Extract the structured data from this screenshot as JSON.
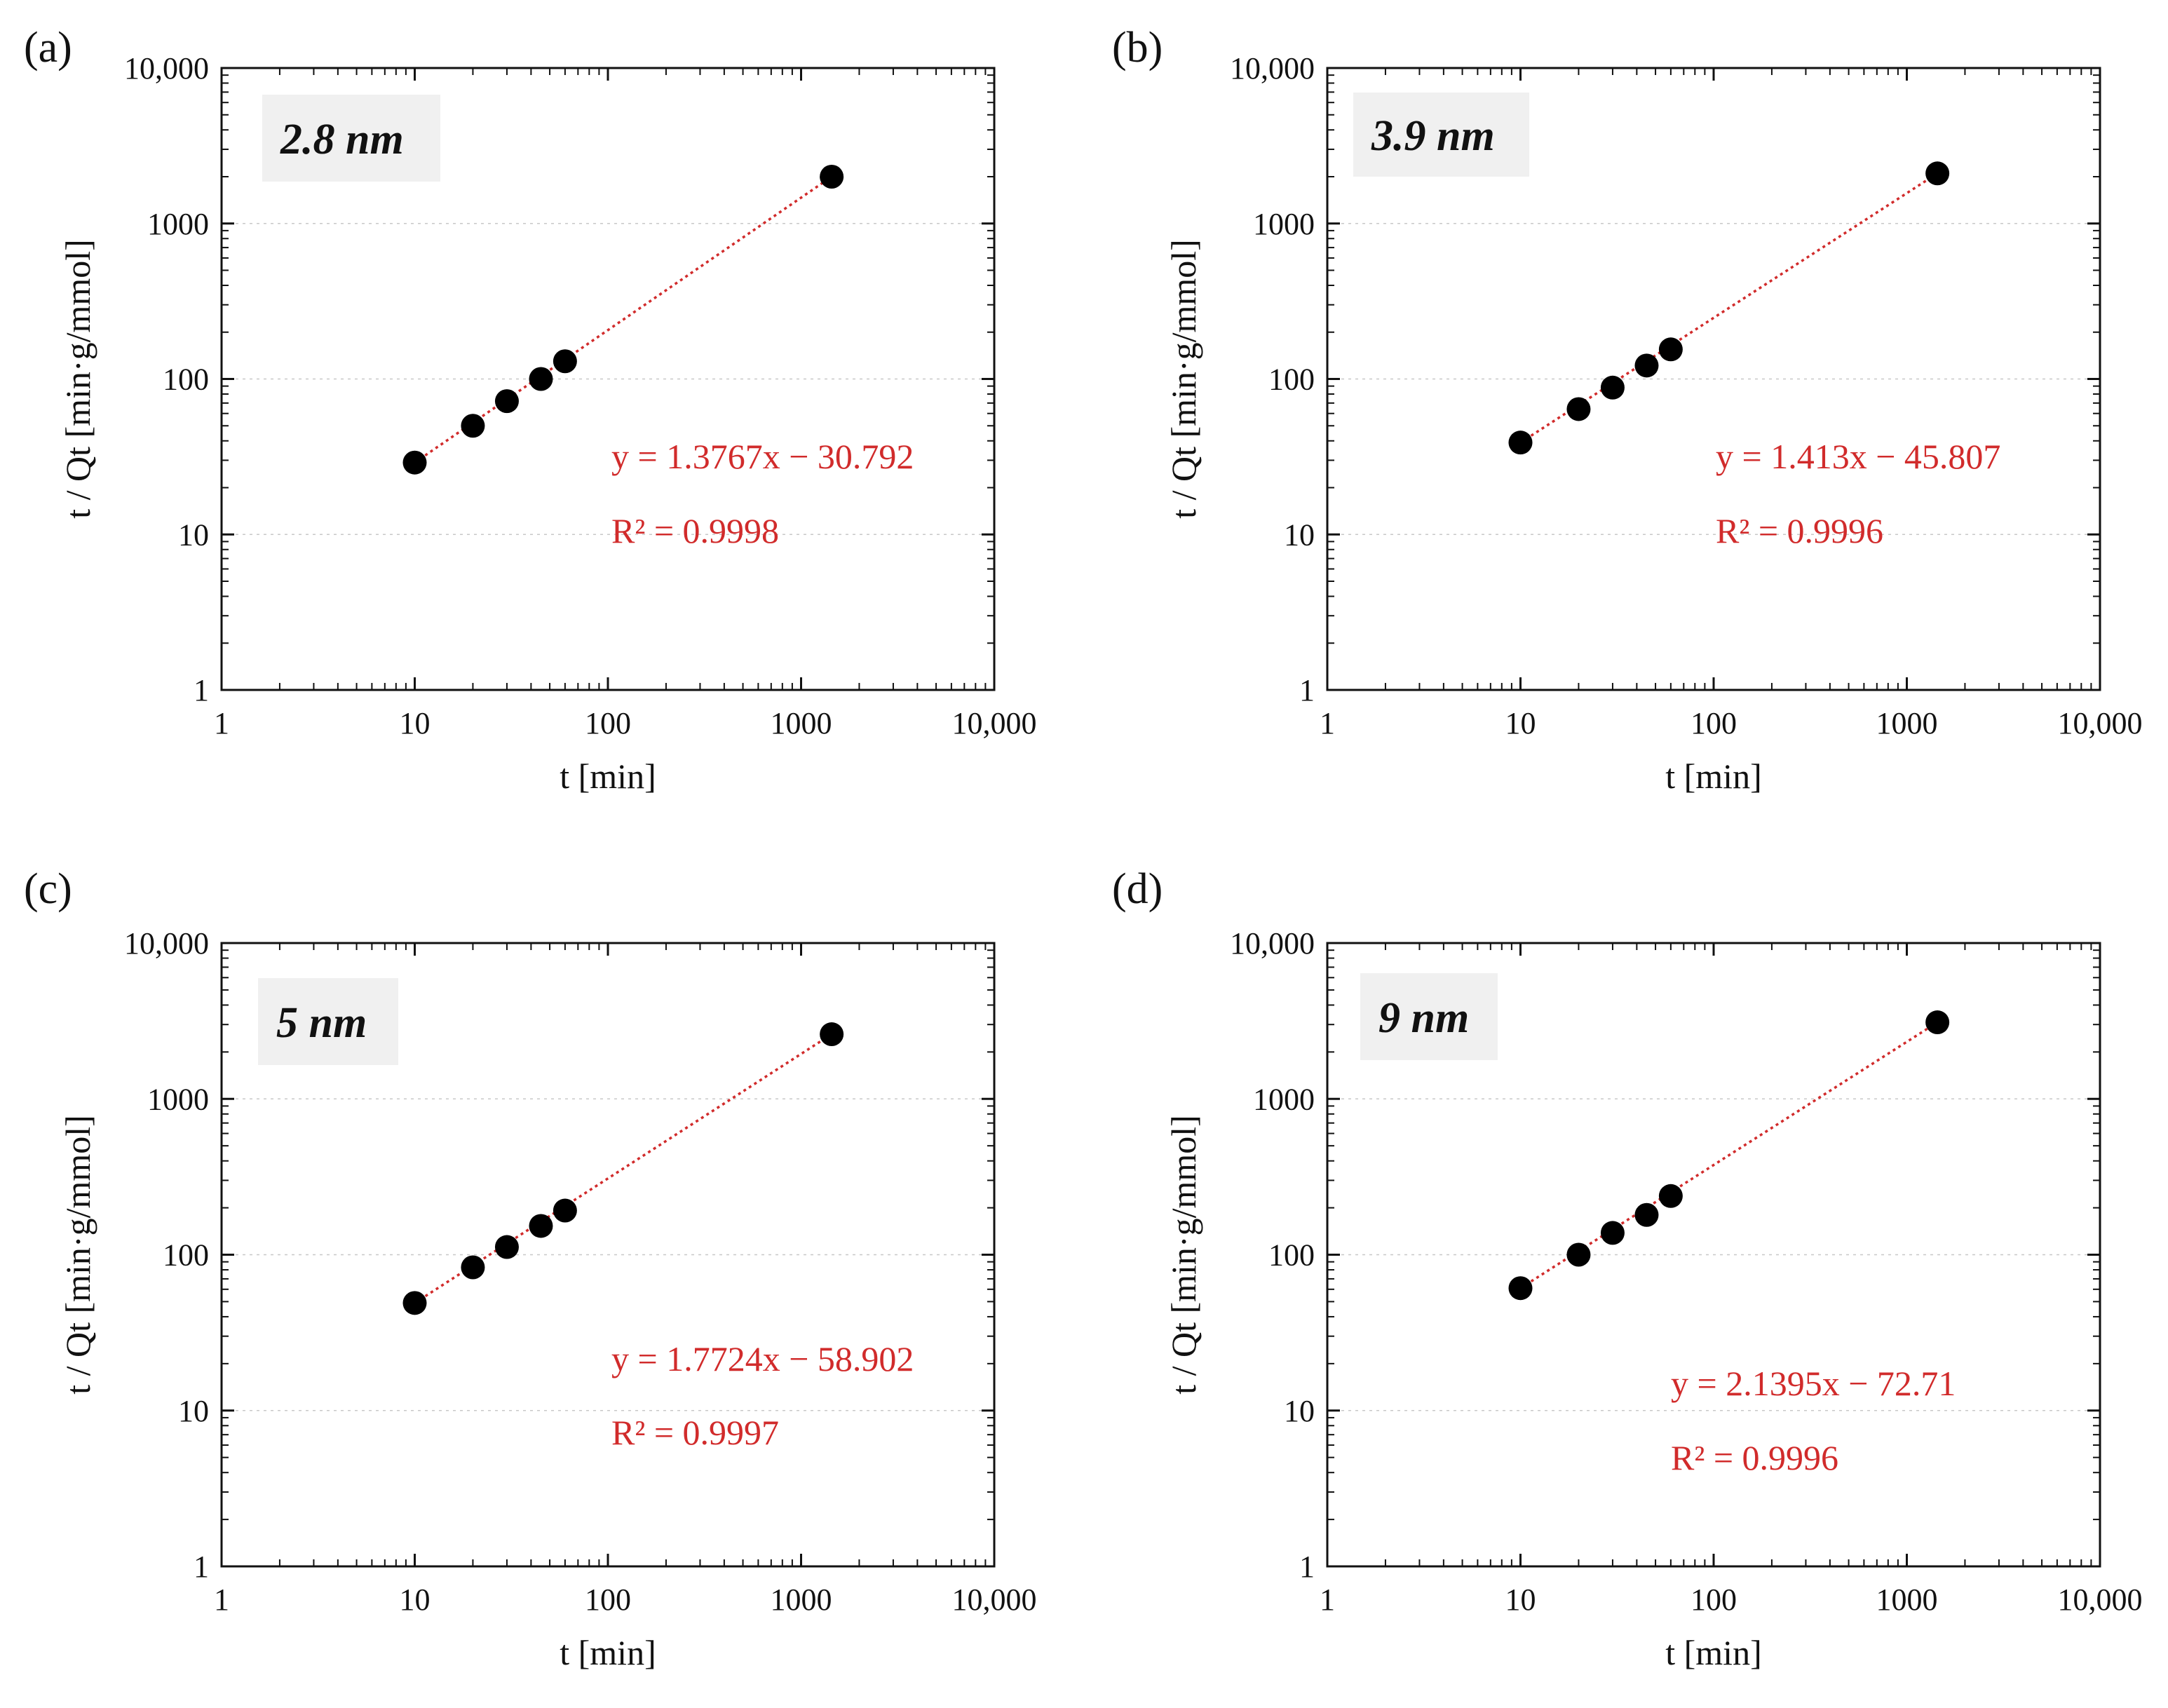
{
  "colors": {
    "fit": "#d12b2b",
    "point": "#000000",
    "axis": "#111111",
    "grid": "#c8c8c8"
  },
  "chart_data": [
    {
      "type": "scatter",
      "panel_label": "(a)",
      "inset_label": "2.8 nm",
      "x": [
        10,
        20,
        30,
        45,
        60,
        1440
      ],
      "y": [
        29,
        50,
        72,
        100,
        130,
        2000
      ],
      "fit": {
        "x": [
          10,
          1440
        ],
        "y": [
          29,
          2000
        ],
        "equation": "y = 1.3767x − 30.792",
        "r2": "R² = 0.9998"
      },
      "xlabel": "t [min]",
      "ylabel": "t / Qt [min·g/mmol]",
      "xscale": "log",
      "yscale": "log",
      "xlim": [
        1,
        10000
      ],
      "ylim": [
        1,
        10000
      ],
      "xticks": [
        "1",
        "10",
        "100",
        "1000",
        "10,000"
      ],
      "yticks": [
        "1",
        "10",
        "100",
        "1000",
        "10,000"
      ],
      "grid": true
    },
    {
      "type": "scatter",
      "panel_label": "(b)",
      "inset_label": "3.9 nm",
      "x": [
        10,
        20,
        30,
        45,
        60,
        1440
      ],
      "y": [
        39,
        64,
        88,
        122,
        155,
        2100
      ],
      "fit": {
        "x": [
          10,
          1440
        ],
        "y": [
          39,
          2100
        ],
        "equation": "y = 1.413x − 45.807",
        "r2": "R² = 0.9996"
      },
      "xlabel": "t [min]",
      "ylabel": "t / Qt [min·g/mmol]",
      "xscale": "log",
      "yscale": "log",
      "xlim": [
        1,
        10000
      ],
      "ylim": [
        1,
        10000
      ],
      "xticks": [
        "1",
        "10",
        "100",
        "1000",
        "10,000"
      ],
      "yticks": [
        "1",
        "10",
        "100",
        "1000",
        "10,000"
      ],
      "grid": true
    },
    {
      "type": "scatter",
      "panel_label": "(c)",
      "inset_label": "5 nm",
      "x": [
        10,
        20,
        30,
        45,
        60,
        1440
      ],
      "y": [
        49,
        83,
        112,
        153,
        192,
        2600
      ],
      "fit": {
        "x": [
          10,
          1440
        ],
        "y": [
          49,
          2600
        ],
        "equation": "y = 1.7724x − 58.902",
        "r2": "R² = 0.9997"
      },
      "xlabel": "t [min]",
      "ylabel": "t / Qt [min·g/mmol]",
      "xscale": "log",
      "yscale": "log",
      "xlim": [
        1,
        10000
      ],
      "ylim": [
        1,
        10000
      ],
      "xticks": [
        "1",
        "10",
        "100",
        "1000",
        "10,000"
      ],
      "yticks": [
        "1",
        "10",
        "100",
        "1000",
        "10,000"
      ],
      "grid": true
    },
    {
      "type": "scatter",
      "panel_label": "(d)",
      "inset_label": "9 nm",
      "x": [
        10,
        20,
        30,
        45,
        60,
        1440
      ],
      "y": [
        61,
        100,
        138,
        180,
        238,
        3100
      ],
      "fit": {
        "x": [
          10,
          1440
        ],
        "y": [
          61,
          3100
        ],
        "equation": "y = 2.1395x − 72.71",
        "r2": "R² = 0.9996"
      },
      "xlabel": "t [min]",
      "ylabel": "t / Qt [min·g/mmol]",
      "xscale": "log",
      "yscale": "log",
      "xlim": [
        1,
        10000
      ],
      "ylim": [
        1,
        10000
      ],
      "xticks": [
        "1",
        "10",
        "100",
        "1000",
        "10,000"
      ],
      "yticks": [
        "1",
        "10",
        "100",
        "1000",
        "10,000"
      ],
      "grid": true
    }
  ]
}
